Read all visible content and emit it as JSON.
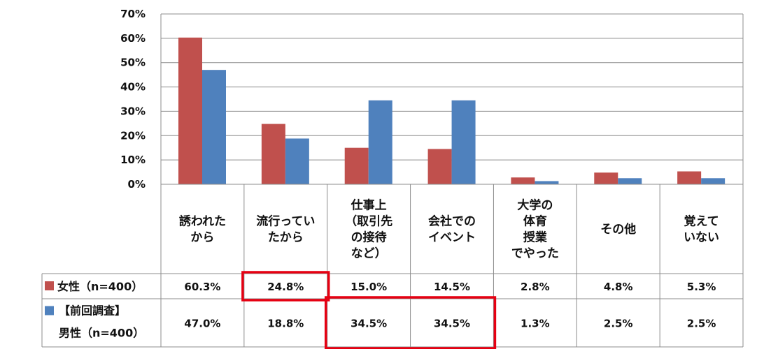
{
  "chart_data": {
    "type": "bar",
    "categories": [
      [
        "誘われた",
        "から"
      ],
      [
        "流行ってい",
        "たから"
      ],
      [
        "仕事上",
        "（取引先",
        "の接待",
        "など）"
      ],
      [
        "会社での",
        "イベント"
      ],
      [
        "大学の",
        "体育",
        "授業",
        "でやった"
      ],
      [
        "その他"
      ],
      [
        "覚えて",
        "いない"
      ]
    ],
    "series": [
      {
        "name": "女性（n=400）",
        "color": "#c0504d",
        "values": [
          60.3,
          24.8,
          15.0,
          14.5,
          2.8,
          4.8,
          5.3
        ],
        "labels": [
          "60.3%",
          "24.8%",
          "15.0%",
          "14.5%",
          "2.8%",
          "4.8%",
          "5.3%"
        ]
      },
      {
        "name_lines": [
          "【前回調査】",
          "男性（n=400）"
        ],
        "color": "#4f81bd",
        "values": [
          47.0,
          18.8,
          34.5,
          34.5,
          1.3,
          2.5,
          2.5
        ],
        "labels": [
          "47.0%",
          "18.8%",
          "34.5%",
          "34.5%",
          "1.3%",
          "2.5%",
          "2.5%"
        ]
      }
    ],
    "y_ticks": [
      "0%",
      "10%",
      "20%",
      "30%",
      "40%",
      "50%",
      "60%",
      "70%"
    ],
    "ylim": [
      0,
      70
    ],
    "grid": true,
    "legend": "data-table",
    "highlight_color": "#e60012",
    "highlights": [
      {
        "series": 0,
        "categories": [
          1
        ]
      },
      {
        "series": 1,
        "categories": [
          2,
          3
        ]
      }
    ]
  }
}
